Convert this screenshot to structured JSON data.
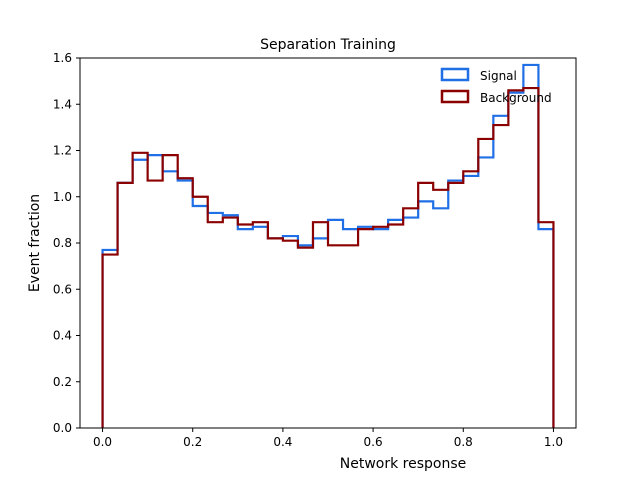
{
  "chart_data": {
    "type": "histogram-step",
    "title": "Separation Training",
    "xlabel": "Network response",
    "ylabel": "Event fraction",
    "xlim": [
      -0.05,
      1.05
    ],
    "ylim": [
      0.0,
      1.6
    ],
    "xticks": [
      "0.0",
      "0.2",
      "0.4",
      "0.6",
      "0.8",
      "1.0"
    ],
    "yticks": [
      "0.0",
      "0.2",
      "0.4",
      "0.6",
      "0.8",
      "1.0",
      "1.2",
      "1.4",
      "1.6"
    ],
    "grid": false,
    "legend_position": "top-right",
    "bin_edges": [
      0.0,
      0.0333,
      0.0667,
      0.1,
      0.1333,
      0.1667,
      0.2,
      0.2333,
      0.2667,
      0.3,
      0.3333,
      0.3667,
      0.4,
      0.4333,
      0.4667,
      0.5,
      0.5333,
      0.5667,
      0.6,
      0.6333,
      0.6667,
      0.7,
      0.7333,
      0.7667,
      0.8,
      0.8333,
      0.8667,
      0.9,
      0.9333,
      0.9667,
      1.0
    ],
    "series": [
      {
        "name": "Signal",
        "color": "#1f6fe6",
        "values": [
          0.77,
          1.06,
          1.16,
          1.18,
          1.11,
          1.07,
          0.96,
          0.93,
          0.92,
          0.86,
          0.87,
          0.82,
          0.83,
          0.79,
          0.82,
          0.9,
          0.86,
          0.87,
          0.86,
          0.9,
          0.91,
          0.98,
          0.95,
          1.07,
          1.09,
          1.17,
          1.35,
          1.45,
          1.57,
          0.86
        ]
      },
      {
        "name": "Background",
        "color": "#8b0000",
        "values": [
          0.75,
          1.06,
          1.19,
          1.07,
          1.18,
          1.08,
          1.0,
          0.89,
          0.91,
          0.88,
          0.89,
          0.82,
          0.81,
          0.78,
          0.89,
          0.79,
          0.79,
          0.86,
          0.87,
          0.88,
          0.95,
          1.06,
          1.03,
          1.06,
          1.11,
          1.25,
          1.31,
          1.46,
          1.47,
          0.89
        ]
      }
    ]
  }
}
